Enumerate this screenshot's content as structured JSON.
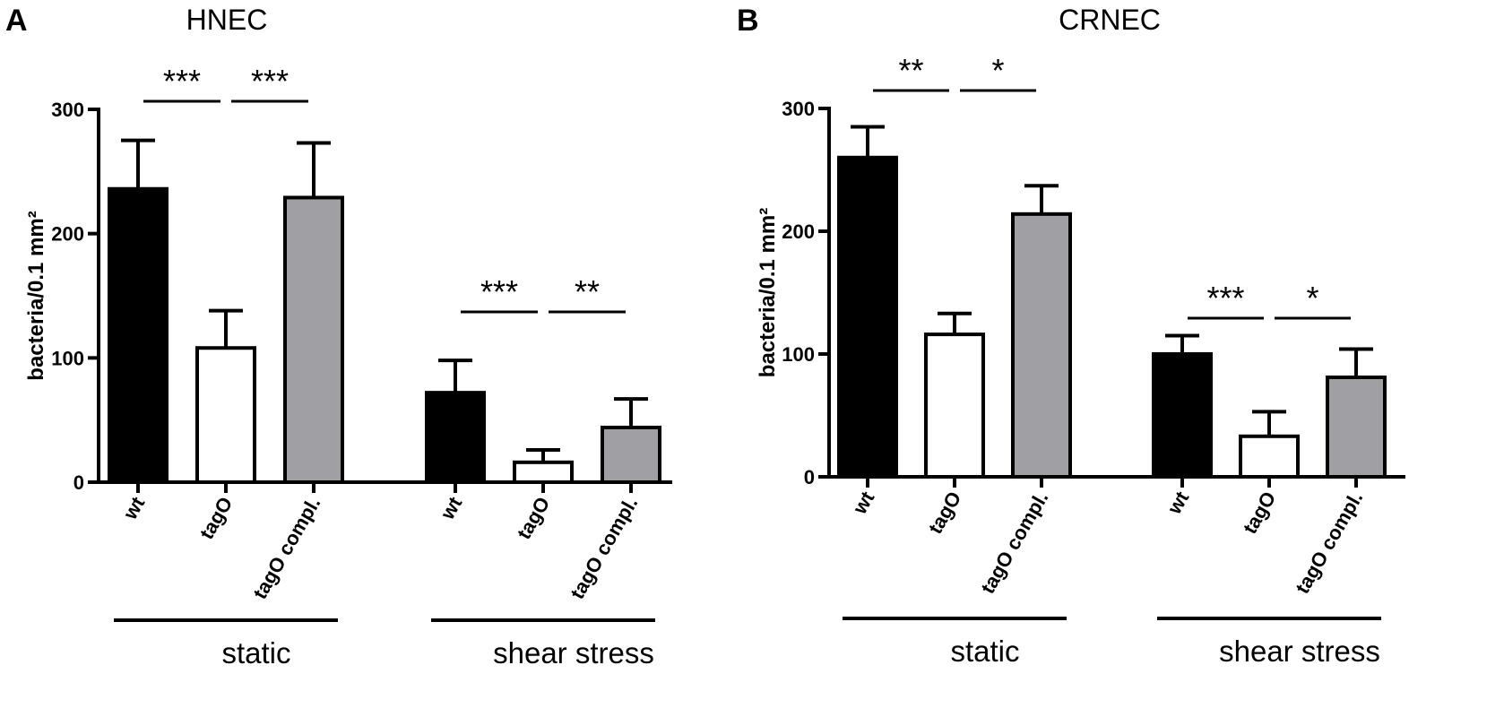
{
  "chart_data": [
    {
      "type": "bar",
      "panel": "A",
      "title": "HNEC",
      "ylabel": "bacteria/0.1 mm²",
      "ylim": [
        0,
        300
      ],
      "yticks": [
        "0",
        "100",
        "200",
        "300"
      ],
      "groups": [
        {
          "label": "static",
          "bars": [
            {
              "category": "wt",
              "value": 236,
              "error": 39,
              "fill": "#000000"
            },
            {
              "category": "tagO",
              "value": 108,
              "error": 30,
              "fill": "#ffffff"
            },
            {
              "category": "tagO compl.",
              "value": 229,
              "error": 44,
              "fill": "#a0a0a4"
            }
          ]
        },
        {
          "label": "shear stress",
          "bars": [
            {
              "category": "wt",
              "value": 72,
              "error": 26,
              "fill": "#000000"
            },
            {
              "category": "tagO",
              "value": 16,
              "error": 10,
              "fill": "#ffffff"
            },
            {
              "category": "tagO compl.",
              "value": 44,
              "error": 23,
              "fill": "#a0a0a4"
            }
          ]
        }
      ],
      "significance": [
        {
          "group": 0,
          "from": 0,
          "to": 1,
          "label": "***"
        },
        {
          "group": 0,
          "from": 1,
          "to": 2,
          "label": "***"
        },
        {
          "group": 1,
          "from": 0,
          "to": 1,
          "label": "***"
        },
        {
          "group": 1,
          "from": 1,
          "to": 2,
          "label": "**"
        }
      ]
    },
    {
      "type": "bar",
      "panel": "B",
      "title": "CRNEC",
      "ylabel": "bacteria/0.1 mm²",
      "ylim": [
        0,
        300
      ],
      "yticks": [
        "0",
        "100",
        "200",
        "300"
      ],
      "groups": [
        {
          "label": "static",
          "bars": [
            {
              "category": "wt",
              "value": 260,
              "error": 25,
              "fill": "#000000"
            },
            {
              "category": "tagO",
              "value": 116,
              "error": 17,
              "fill": "#ffffff"
            },
            {
              "category": "tagO compl.",
              "value": 214,
              "error": 23,
              "fill": "#a0a0a4"
            }
          ]
        },
        {
          "label": "shear stress",
          "bars": [
            {
              "category": "wt",
              "value": 100,
              "error": 15,
              "fill": "#000000"
            },
            {
              "category": "tagO",
              "value": 33,
              "error": 20,
              "fill": "#ffffff"
            },
            {
              "category": "tagO compl.",
              "value": 81,
              "error": 23,
              "fill": "#a0a0a4"
            }
          ]
        }
      ],
      "significance": [
        {
          "group": 0,
          "from": 0,
          "to": 1,
          "label": "**"
        },
        {
          "group": 0,
          "from": 1,
          "to": 2,
          "label": "*"
        },
        {
          "group": 1,
          "from": 0,
          "to": 1,
          "label": "***"
        },
        {
          "group": 1,
          "from": 1,
          "to": 2,
          "label": "*"
        }
      ]
    }
  ]
}
